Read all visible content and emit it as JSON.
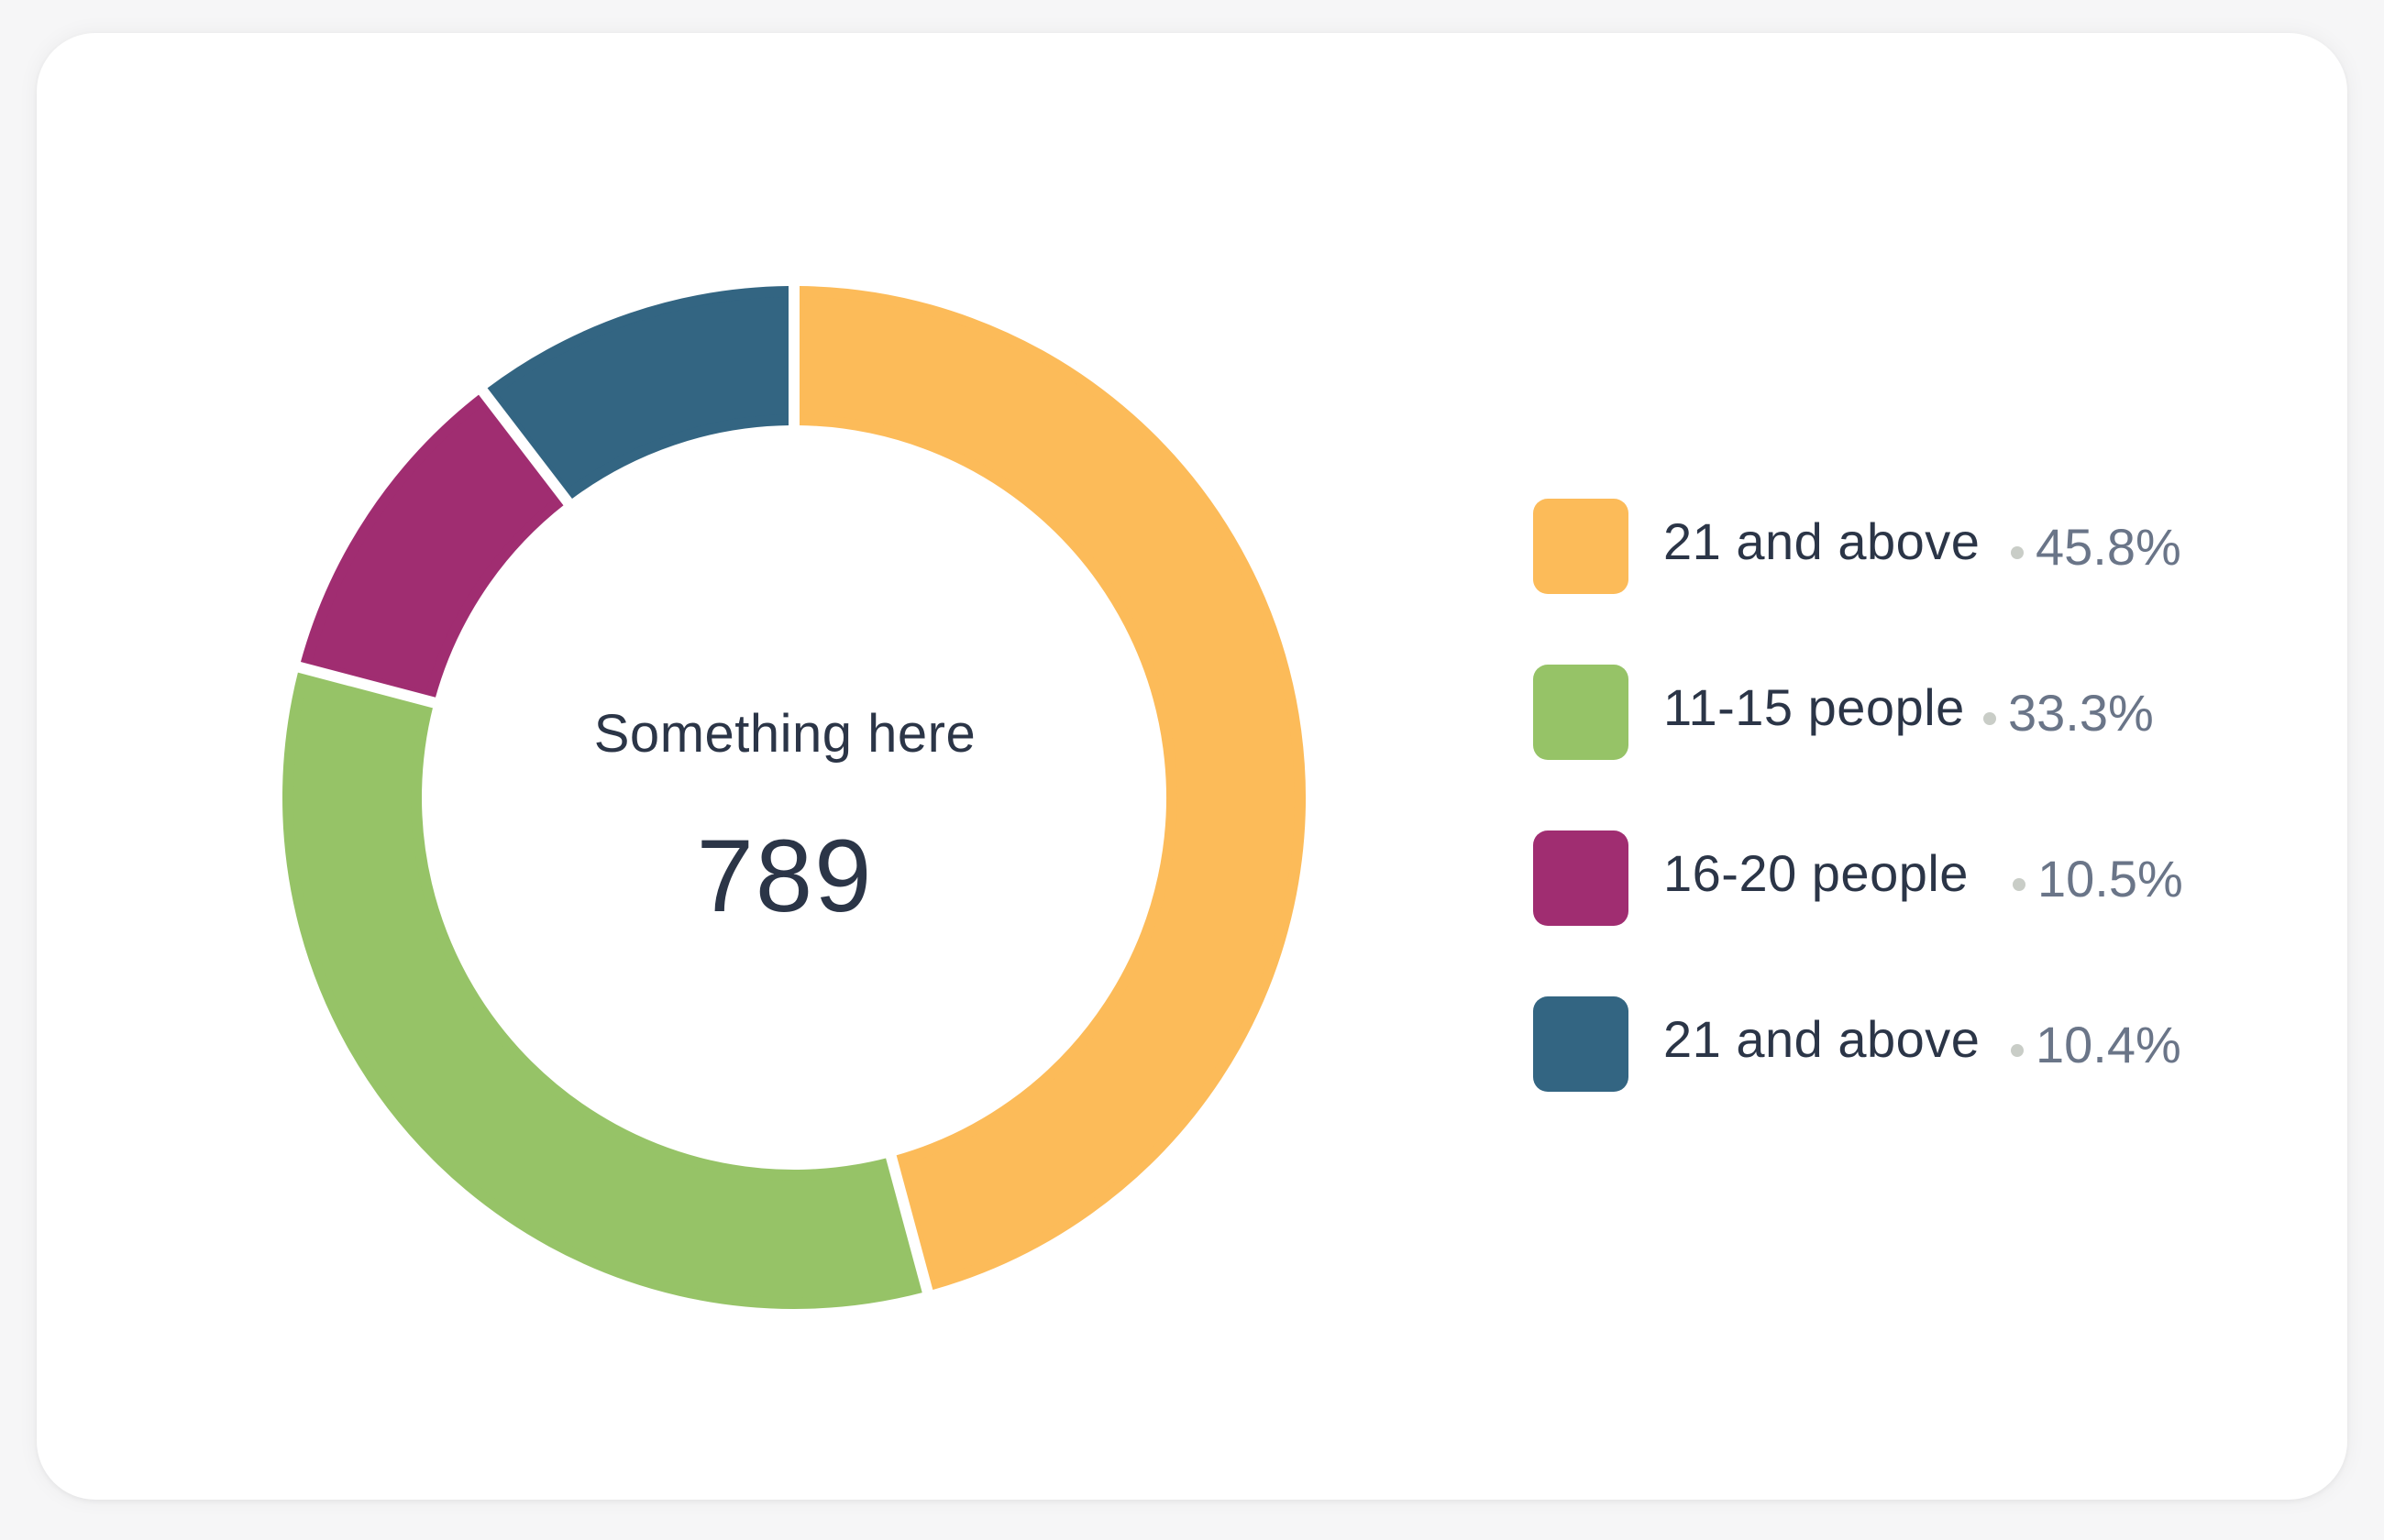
{
  "card": {
    "center_label": "Something here",
    "center_value": "789"
  },
  "chart_data": {
    "type": "pie",
    "donut": true,
    "categories": [
      "21 and above",
      "11-15 people",
      "16-20 people",
      "21 and above"
    ],
    "values": [
      45.8,
      33.3,
      10.5,
      10.4
    ],
    "value_labels": [
      "45.8%",
      "33.3%",
      "10.5%",
      "10.4%"
    ],
    "colors": [
      "#fcbb59",
      "#96c367",
      "#a02d71",
      "#336582"
    ],
    "legend_placement": "right"
  }
}
